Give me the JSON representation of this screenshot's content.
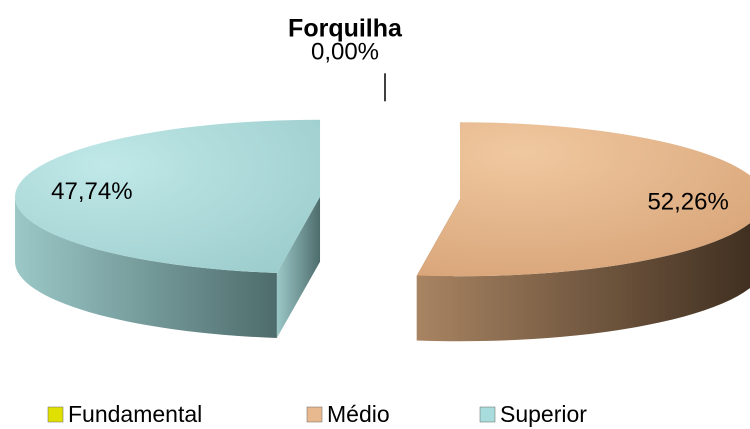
{
  "chart_data": {
    "type": "pie",
    "title": "Forquilha",
    "categories": [
      "Fundamental",
      "Médio",
      "Superior"
    ],
    "values": [
      0,
      52.26,
      47.74
    ],
    "value_labels": [
      "0,00%",
      "52,26%",
      "47,74%"
    ],
    "colors": [
      "#e0e000",
      "#e8b88e",
      "#a9dcdc"
    ],
    "legend": "bottom"
  }
}
